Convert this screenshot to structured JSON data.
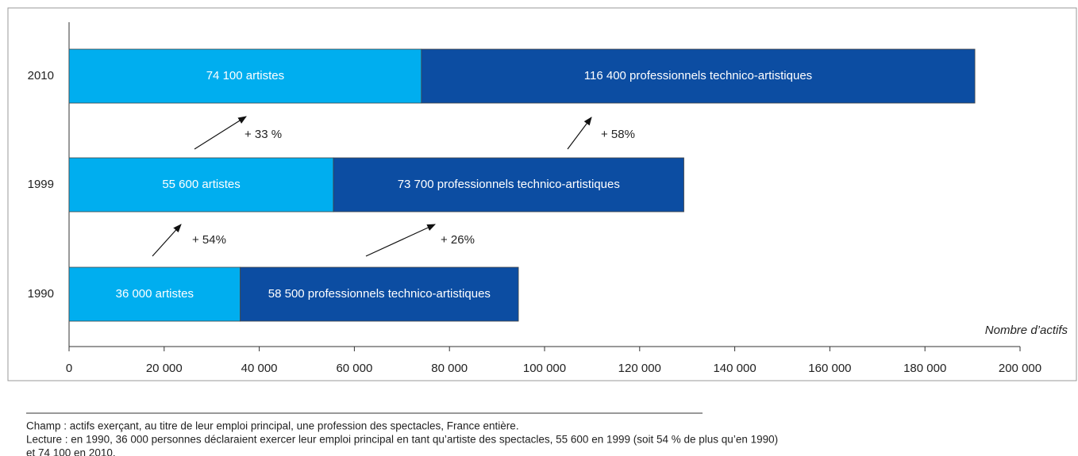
{
  "chart_data": {
    "type": "bar",
    "orientation": "horizontal",
    "stacked": true,
    "categories": [
      "2010",
      "1999",
      "1990"
    ],
    "series": [
      {
        "name": "artistes",
        "color": "#00aeef",
        "values": [
          74100,
          55600,
          36000
        ],
        "value_labels": [
          "74 100 artistes",
          "55 600 artistes",
          "36 000 artistes"
        ]
      },
      {
        "name": "professionnels technico-artistiques",
        "color": "#0c4da2",
        "values": [
          116400,
          73700,
          58500
        ],
        "value_labels": [
          "116 400 professionnels technico-artistiques",
          "73 700 professionnels technico-artistiques",
          "58 500 professionnels technico-artistiques"
        ]
      }
    ],
    "xlim": [
      0,
      200000
    ],
    "xticks": [
      0,
      {
        "value": 20000,
        "label": "20 000"
      },
      {
        "value": 40000,
        "label": "40 000"
      },
      {
        "value": 60000,
        "label": "60 000"
      },
      {
        "value": 80000,
        "label": "80 000"
      },
      {
        "value": 100000,
        "label": "100 000"
      },
      {
        "value": 120000,
        "label": "120 000"
      },
      {
        "value": 140000,
        "label": "140 000"
      },
      {
        "value": 160000,
        "label": "160 000"
      },
      {
        "value": 180000,
        "label": "180 000"
      },
      {
        "value": 200000,
        "label": "200 000"
      }
    ],
    "x_label": "Nombre d’actifs",
    "annotations": [
      "+ 33 %",
      "+ 58%",
      "+ 54%",
      "+ 26%"
    ],
    "notes": [
      "Champ : actifs exerçant, au titre de leur emploi principal, une profession des spectacles, France entière.",
      "Lecture : en 1990, 36 000 personnes déclaraient exercer leur emploi principal en tant qu’artiste des spectacles, 55 600 en 1999 (soit 54 % de plus qu’en 1990)",
      "et 74 100 en 2010."
    ]
  }
}
